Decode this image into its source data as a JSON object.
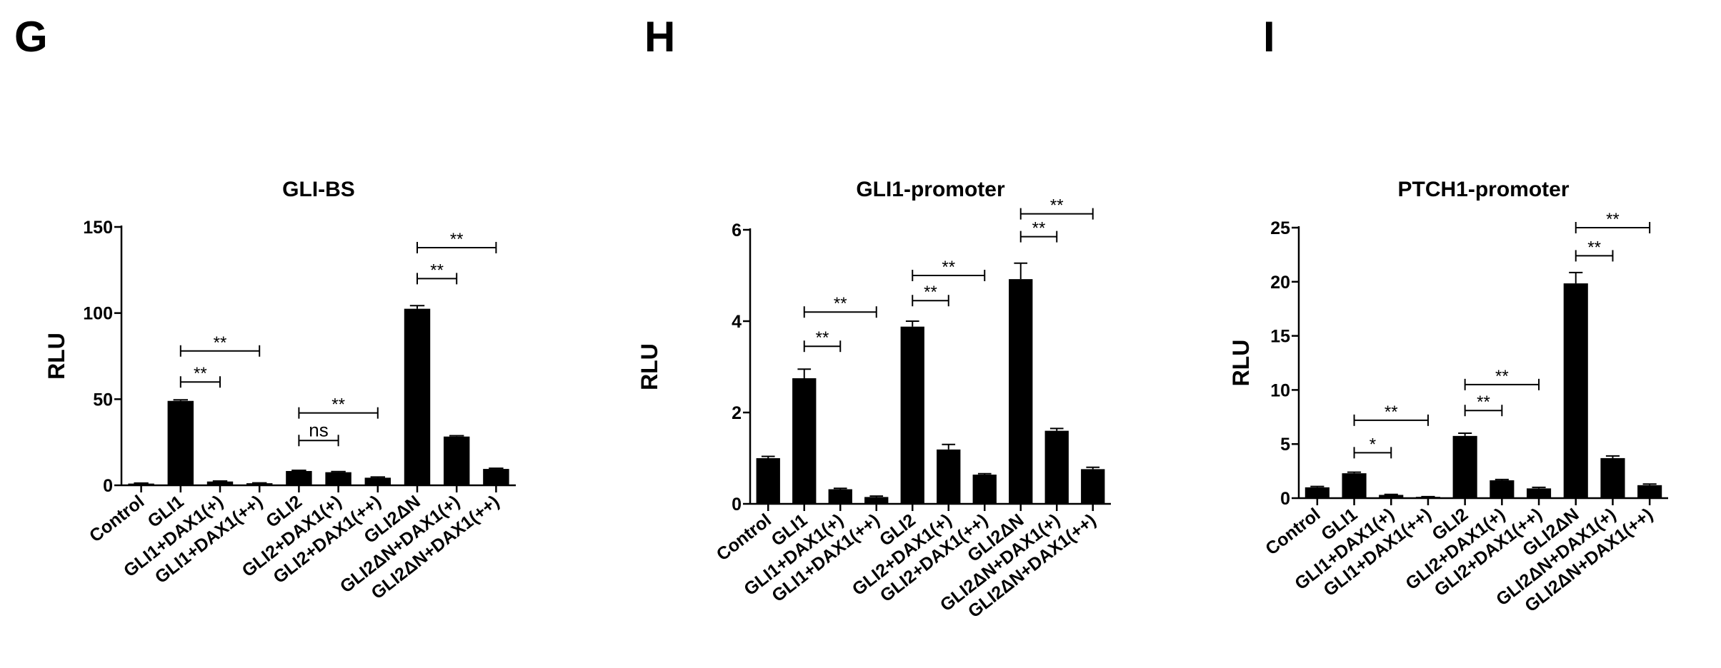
{
  "chart_data": [
    {
      "panel": "G",
      "type": "bar",
      "title": "GLI-BS",
      "ylabel": "RLU",
      "ylim": [
        0,
        150
      ],
      "yticks": [
        0,
        50,
        100,
        150
      ],
      "categories": [
        "Control",
        "GLI1",
        "GLI1+DAX1(+)",
        "GLI1+DAX1(++)",
        "GLI2",
        "GLI2+DAX1(+)",
        "GLI2+DAX1(++)",
        "GLI2ΔN",
        "GLI2ΔN+DAX1(+)",
        "GLI2ΔN+DAX1(++)"
      ],
      "values": [
        1,
        49,
        2.2,
        1.2,
        8.3,
        7.6,
        4.4,
        102.5,
        28.3,
        9.5
      ],
      "errors": [
        0.3,
        0.6,
        0.3,
        0.2,
        0.4,
        0.4,
        0.4,
        1.8,
        0.5,
        0.4
      ],
      "brackets": [
        {
          "from": 1,
          "to": 2,
          "y": 60,
          "label": "**"
        },
        {
          "from": 1,
          "to": 3,
          "y": 78,
          "label": "**"
        },
        {
          "from": 4,
          "to": 5,
          "y": 26,
          "label": "ns"
        },
        {
          "from": 4,
          "to": 6,
          "y": 42,
          "label": "**"
        },
        {
          "from": 7,
          "to": 8,
          "y": 120,
          "label": "**"
        },
        {
          "from": 7,
          "to": 9,
          "y": 138,
          "label": "**"
        }
      ]
    },
    {
      "panel": "H",
      "type": "bar",
      "title": "GLI1-promoter",
      "ylabel": "RLU",
      "ylim": [
        0,
        6
      ],
      "yticks": [
        0,
        2,
        4,
        6
      ],
      "categories": [
        "Control",
        "GLI1",
        "GLI1+DAX1(+)",
        "GLI1+DAX1(++)",
        "GLI2",
        "GLI2+DAX1(+)",
        "GLI2+DAX1(++)",
        "GLI2ΔN",
        "GLI2ΔN+DAX1(+)",
        "GLI2ΔN+DAX1(++)"
      ],
      "values": [
        1,
        2.75,
        0.32,
        0.15,
        3.88,
        1.19,
        0.64,
        4.92,
        1.6,
        0.76
      ],
      "errors": [
        0.04,
        0.2,
        0.02,
        0.02,
        0.12,
        0.11,
        0.02,
        0.35,
        0.05,
        0.04
      ],
      "brackets": [
        {
          "from": 1,
          "to": 2,
          "y": 3.45,
          "label": "**"
        },
        {
          "from": 1,
          "to": 3,
          "y": 4.2,
          "label": "**"
        },
        {
          "from": 4,
          "to": 5,
          "y": 4.45,
          "label": "**"
        },
        {
          "from": 4,
          "to": 6,
          "y": 5.0,
          "label": "**"
        },
        {
          "from": 7,
          "to": 8,
          "y": 5.85,
          "label": "**"
        },
        {
          "from": 7,
          "to": 9,
          "y": 6.35,
          "label": "**"
        }
      ]
    },
    {
      "panel": "I",
      "type": "bar",
      "title": "PTCH1-promoter",
      "ylabel": "RLU",
      "ylim": [
        0,
        25
      ],
      "yticks": [
        0,
        5,
        10,
        15,
        20,
        25
      ],
      "categories": [
        "Control",
        "GLI1",
        "GLI1+DAX1(+)",
        "GLI1+DAX1(++)",
        "GLI2",
        "GLI2+DAX1(+)",
        "GLI2+DAX1(++)",
        "GLI2ΔN",
        "GLI2ΔN+DAX1(+)",
        "GLI2ΔN+DAX1(++)"
      ],
      "values": [
        1,
        2.3,
        0.3,
        0.12,
        5.75,
        1.65,
        0.9,
        19.85,
        3.7,
        1.2
      ],
      "errors": [
        0.08,
        0.1,
        0.05,
        0.02,
        0.25,
        0.07,
        0.1,
        1.0,
        0.2,
        0.1
      ],
      "brackets": [
        {
          "from": 1,
          "to": 2,
          "y": 4.2,
          "label": "*"
        },
        {
          "from": 1,
          "to": 3,
          "y": 7.2,
          "label": "**"
        },
        {
          "from": 4,
          "to": 5,
          "y": 8.1,
          "label": "**"
        },
        {
          "from": 4,
          "to": 6,
          "y": 10.5,
          "label": "**"
        },
        {
          "from": 7,
          "to": 8,
          "y": 22.4,
          "label": "**"
        },
        {
          "from": 7,
          "to": 9,
          "y": 25.0,
          "label": "**"
        }
      ]
    }
  ]
}
